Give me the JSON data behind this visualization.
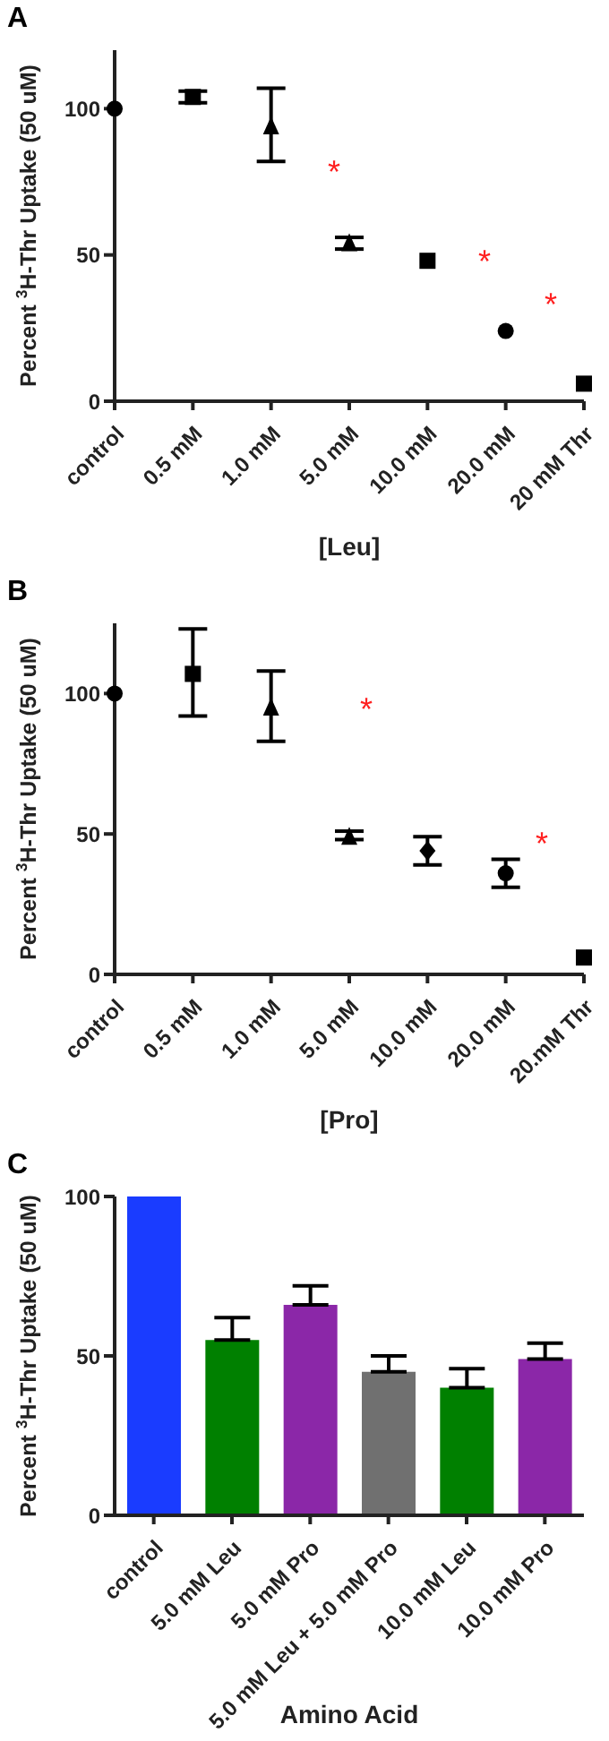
{
  "chart_data": [
    {
      "type": "scatter",
      "title": "A",
      "xlabel": "[Leu]",
      "ylabel": "Percent $^{3}$H-Thr Uptake (50 uM)",
      "categories": [
        "control",
        "0.5 mM",
        "1.0 mM",
        "5.0 mM",
        "10.0 mM",
        "20.0 mM",
        "20 mM Thr"
      ],
      "ylim": [
        0,
        120
      ],
      "yticks": [
        0,
        50,
        100
      ],
      "grid": false,
      "legend": false,
      "series": [
        {
          "color": "#000000",
          "marker": "circle",
          "values": [
            100,
            null,
            null,
            null,
            null,
            null,
            null
          ]
        },
        {
          "color": "#000000",
          "marker": "square",
          "values": [
            null,
            104,
            null,
            null,
            null,
            null,
            null
          ],
          "errors": [
            null,
            [
              102,
              106
            ],
            null,
            null,
            null,
            null,
            null
          ]
        },
        {
          "color": "#000000",
          "marker": "triangle",
          "values": [
            null,
            null,
            94,
            null,
            null,
            null,
            null
          ],
          "errors": [
            null,
            null,
            [
              82,
              107
            ],
            null,
            null,
            null,
            null
          ]
        },
        {
          "color": "#000000",
          "marker": "triangle",
          "values": [
            null,
            null,
            null,
            54,
            null,
            null,
            null
          ],
          "errors": [
            null,
            null,
            null,
            [
              52,
              56
            ],
            null,
            null,
            null
          ]
        },
        {
          "color": "#000000",
          "marker": "square",
          "values": [
            null,
            null,
            null,
            null,
            48,
            null,
            null
          ]
        },
        {
          "color": "#000000",
          "marker": "circle",
          "values": [
            null,
            null,
            null,
            null,
            null,
            24,
            null
          ]
        },
        {
          "color": "#000000",
          "marker": "square",
          "values": [
            null,
            null,
            null,
            null,
            null,
            null,
            6
          ]
        }
      ],
      "annotations": [
        "*",
        "*",
        "*"
      ]
    },
    {
      "type": "scatter",
      "title": "B",
      "xlabel": "[Pro]",
      "ylabel": "Percent $^{3}$H-Thr Uptake (50 uM)",
      "categories": [
        "control",
        "0.5 mM",
        "1.0 mM",
        "5.0 mM",
        "10.0 mM",
        "20.0 mM",
        "20.mM Thr"
      ],
      "ylim": [
        0,
        125
      ],
      "yticks": [
        0,
        50,
        100
      ],
      "grid": false,
      "legend": false,
      "series": [
        {
          "color": "#000000",
          "marker": "circle",
          "values": [
            100,
            null,
            null,
            null,
            null,
            null,
            null
          ]
        },
        {
          "color": "#000000",
          "marker": "square",
          "values": [
            null,
            107,
            null,
            null,
            null,
            null,
            null
          ],
          "errors": [
            null,
            [
              92,
              123
            ],
            null,
            null,
            null,
            null,
            null
          ]
        },
        {
          "color": "#000000",
          "marker": "triangle",
          "values": [
            null,
            null,
            95,
            null,
            null,
            null,
            null
          ],
          "errors": [
            null,
            null,
            [
              83,
              108
            ],
            null,
            null,
            null,
            null
          ]
        },
        {
          "color": "#000000",
          "marker": "triangle",
          "values": [
            null,
            null,
            null,
            49,
            null,
            null,
            null
          ],
          "errors": [
            null,
            null,
            null,
            [
              48,
              51
            ],
            null,
            null,
            null
          ]
        },
        {
          "color": "#000000",
          "marker": "diamond",
          "values": [
            null,
            null,
            null,
            null,
            44,
            null,
            null
          ],
          "errors": [
            null,
            null,
            null,
            null,
            [
              39,
              49
            ],
            null,
            null
          ]
        },
        {
          "color": "#000000",
          "marker": "circle",
          "values": [
            null,
            null,
            null,
            null,
            null,
            36,
            null
          ],
          "errors": [
            null,
            null,
            null,
            null,
            null,
            [
              31,
              41
            ],
            null
          ]
        },
        {
          "color": "#000000",
          "marker": "square",
          "values": [
            null,
            null,
            null,
            null,
            null,
            null,
            6
          ]
        }
      ],
      "annotations": [
        "*",
        "*"
      ]
    },
    {
      "type": "bar",
      "title": "C",
      "xlabel": "Amino Acid",
      "ylabel": "Percent $^{3}$H-Thr Uptake (50 uM)",
      "categories": [
        "control",
        "5.0 mM Leu",
        "5.0 mM Pro",
        "5.0 mM Leu + 5.0 mM Pro",
        "10.0 mM Leu",
        "10.0 mM Pro"
      ],
      "ylim": [
        0,
        100
      ],
      "yticks": [
        0,
        50,
        100
      ],
      "grid": false,
      "legend": false,
      "values": [
        100,
        55,
        66,
        45,
        40,
        49
      ],
      "colors": [
        "#1a3cff",
        "#008000",
        "#8b27a8",
        "#707070",
        "#008000",
        "#8b27a8"
      ],
      "errors": [
        null,
        [
          55,
          62
        ],
        [
          66,
          72
        ],
        [
          45,
          50
        ],
        [
          40,
          46
        ],
        [
          49,
          54
        ]
      ]
    }
  ]
}
